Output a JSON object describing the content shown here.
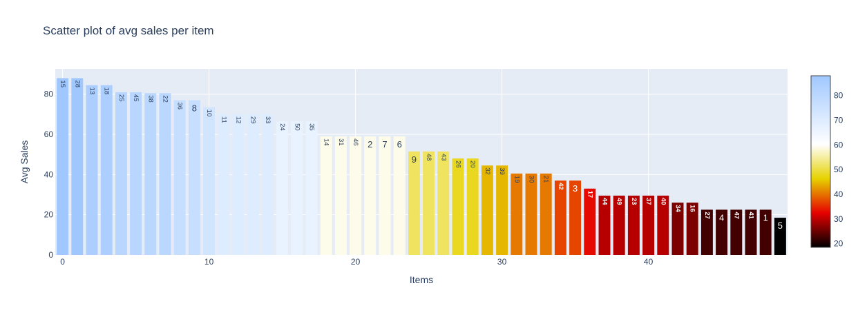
{
  "chart_data": {
    "type": "bar",
    "title": "Scatter plot of avg sales per item",
    "xlabel": "Items",
    "ylabel": "Avg Sales",
    "x": [
      0,
      1,
      2,
      3,
      4,
      5,
      6,
      7,
      8,
      9,
      10,
      11,
      12,
      13,
      14,
      15,
      16,
      17,
      18,
      19,
      20,
      21,
      22,
      23,
      24,
      25,
      26,
      27,
      28,
      29,
      30,
      31,
      32,
      33,
      34,
      35,
      36,
      37,
      38,
      39,
      40,
      41,
      42,
      43,
      44,
      45,
      46,
      47,
      48,
      49
    ],
    "values": [
      88,
      88,
      84.5,
      84.5,
      81,
      81,
      80.5,
      80.5,
      77,
      77,
      73.5,
      70,
      70,
      70,
      70,
      66.5,
      66.5,
      66.5,
      59,
      59,
      59,
      59,
      59,
      59,
      51.5,
      51.5,
      51.5,
      48,
      48,
      44.5,
      44.5,
      40.5,
      40.5,
      40.5,
      37,
      37,
      33,
      29.5,
      29.5,
      29.5,
      29.5,
      29.5,
      26,
      26,
      22.5,
      22.5,
      22.5,
      22.5,
      22.5,
      18.5
    ],
    "text": [
      "15",
      "28",
      "13",
      "18",
      "25",
      "45",
      "38",
      "22",
      "36",
      "8",
      "10",
      "11",
      "12",
      "29",
      "33",
      "24",
      "50",
      "35",
      "14",
      "31",
      "46",
      "2",
      "7",
      "6",
      "9",
      "48",
      "43",
      "26",
      "20",
      "32",
      "39",
      "19",
      "30",
      "21",
      "42",
      "3",
      "17",
      "44",
      "49",
      "23",
      "37",
      "40",
      "34",
      "16",
      "27",
      "4",
      "47",
      "41",
      "1",
      "5"
    ],
    "xlim": [
      -0.5,
      49.5
    ],
    "ylim": [
      0,
      92.6
    ],
    "xticks": [
      0,
      10,
      20,
      30,
      40
    ],
    "yticks": [
      0,
      20,
      40,
      60,
      80
    ],
    "colorbar": {
      "range": [
        18.5,
        88
      ],
      "ticks": [
        20,
        30,
        40,
        50,
        60,
        70,
        80
      ],
      "colorscale": [
        [
          0.0,
          "#000000"
        ],
        [
          0.2,
          "#e60000"
        ],
        [
          0.4,
          "#e6d200"
        ],
        [
          0.6,
          "#ffffff"
        ],
        [
          1.0,
          "#a0c8ff"
        ]
      ]
    },
    "legend": "none",
    "grid": true
  }
}
